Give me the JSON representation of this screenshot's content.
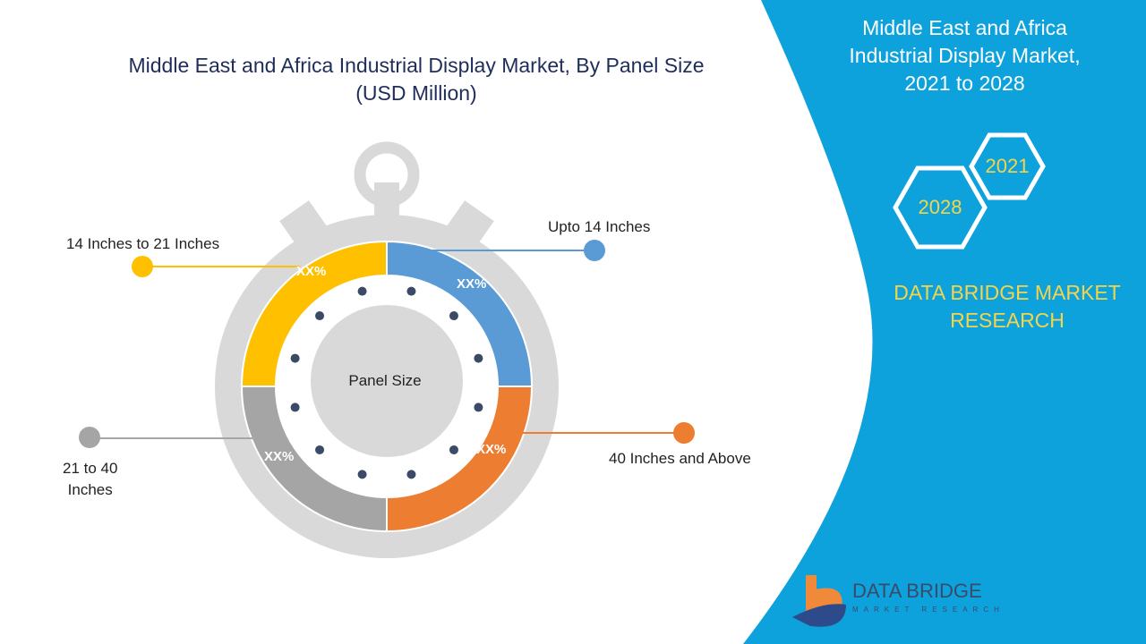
{
  "title_line1": "Middle East and Africa Industrial Display Market, By Panel Size",
  "title_line2": "(USD Million)",
  "center_label": "Panel Size",
  "segments": [
    {
      "label": "Upto 14 Inches",
      "value": "XX%",
      "color": "#5b9bd5"
    },
    {
      "label": "40 Inches and Above",
      "value": "XX%",
      "color": "#ed7d31"
    },
    {
      "label": "21 to 40 Inches",
      "value": "XX%",
      "color": "#a5a5a5"
    },
    {
      "label": "14 Inches to 21 Inches",
      "value": "XX%",
      "color": "#ffc000"
    }
  ],
  "seg_labels": {
    "s0": "Upto 14 Inches",
    "s1": "40 Inches and Above",
    "s2a": "21 to 40",
    "s2b": "Inches",
    "s3": "14 Inches to 21 Inches"
  },
  "right_panel": {
    "title_line1": "Middle East and Africa",
    "title_line2": "Industrial Display Market,",
    "title_line3": "2021 to 2028",
    "year1": "2021",
    "year2": "2028",
    "brand_line1": "DATA BRIDGE MARKET",
    "brand_line2": "RESEARCH",
    "color": "#0ea2dd"
  },
  "logo": {
    "name": "DATA BRIDGE",
    "tagline": "MARKET RESEARCH"
  }
}
